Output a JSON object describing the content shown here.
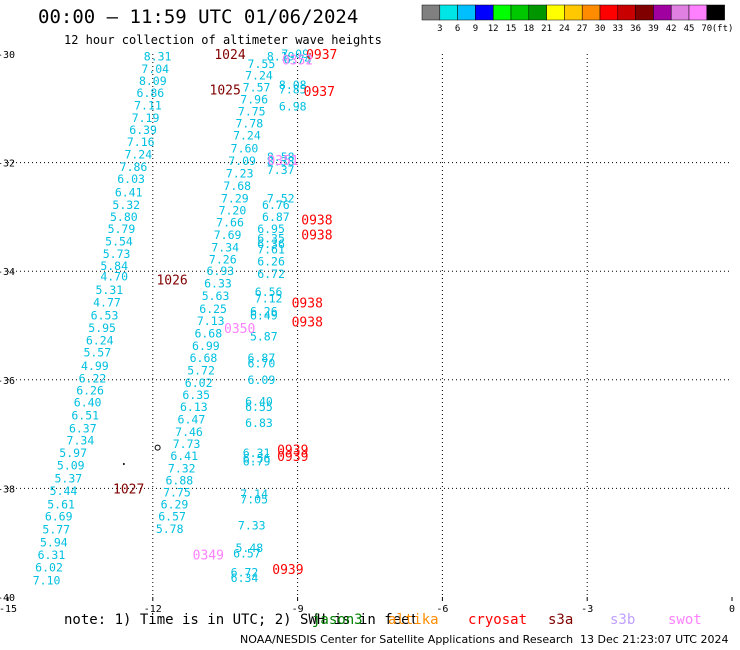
{
  "header": {
    "title": "00:00 — 11:59 UTC 01/06/2024",
    "subtitle": "12 hour collection of altimeter wave heights"
  },
  "colorbar": {
    "unit": "(ft)",
    "bins": [
      {
        "label": "3",
        "color": "#808080"
      },
      {
        "label": "6",
        "color": "#00e5e5"
      },
      {
        "label": "9",
        "color": "#00bfff"
      },
      {
        "label": "12",
        "color": "#0000ff"
      },
      {
        "label": "15",
        "color": "#00ff00"
      },
      {
        "label": "18",
        "color": "#00c800"
      },
      {
        "label": "21",
        "color": "#009600"
      },
      {
        "label": "24",
        "color": "#ffff00"
      },
      {
        "label": "27",
        "color": "#ffc800"
      },
      {
        "label": "30",
        "color": "#ff8c00"
      },
      {
        "label": "33",
        "color": "#ff0000"
      },
      {
        "label": "36",
        "color": "#c80000"
      },
      {
        "label": "39",
        "color": "#800000"
      },
      {
        "label": "42",
        "color": "#a000a0"
      },
      {
        "label": "45",
        "color": "#e080e0"
      },
      {
        "label": "70",
        "color": "#ff80ff"
      },
      {
        "label": "",
        "color": "#000000"
      }
    ]
  },
  "map": {
    "lon_range": [
      -15,
      0
    ],
    "lat_range": [
      -40,
      -30
    ],
    "x_ticks": [
      "-15",
      "-12",
      "-9",
      "-6",
      "-3",
      "0"
    ],
    "y_ticks": [
      "-30",
      "-32",
      "-34",
      "-36",
      "-38",
      "-40"
    ],
    "grid": "dotted",
    "value_color": "#00c0e0",
    "track_points": [
      {
        "lon": -11.9,
        "lat": -30.05,
        "v": "8.31"
      },
      {
        "lon": -11.95,
        "lat": -30.28,
        "v": "7.04"
      },
      {
        "lon": -12.0,
        "lat": -30.5,
        "v": "8.09"
      },
      {
        "lon": -12.05,
        "lat": -30.72,
        "v": "6.86"
      },
      {
        "lon": -12.1,
        "lat": -30.95,
        "v": "7.11"
      },
      {
        "lon": -12.15,
        "lat": -31.18,
        "v": "7.19"
      },
      {
        "lon": -12.2,
        "lat": -31.4,
        "v": "6.39"
      },
      {
        "lon": -12.25,
        "lat": -31.62,
        "v": "7.16"
      },
      {
        "lon": -12.3,
        "lat": -31.85,
        "v": "7.24"
      },
      {
        "lon": -12.4,
        "lat": -32.08,
        "v": "7.86"
      },
      {
        "lon": -12.45,
        "lat": -32.3,
        "v": "6.03"
      },
      {
        "lon": -12.5,
        "lat": -32.55,
        "v": "6.41"
      },
      {
        "lon": -12.55,
        "lat": -32.78,
        "v": "5.32"
      },
      {
        "lon": -12.6,
        "lat": -33.0,
        "v": "5.80"
      },
      {
        "lon": -12.65,
        "lat": -33.22,
        "v": "5.79"
      },
      {
        "lon": -12.7,
        "lat": -33.45,
        "v": "5.54"
      },
      {
        "lon": -12.75,
        "lat": -33.68,
        "v": "5.73"
      },
      {
        "lon": -12.8,
        "lat": -33.9,
        "v": "5.84"
      },
      {
        "lon": -12.8,
        "lat": -34.1,
        "v": "4.70"
      },
      {
        "lon": -12.9,
        "lat": -34.35,
        "v": "5.31"
      },
      {
        "lon": -12.95,
        "lat": -34.58,
        "v": "4.77"
      },
      {
        "lon": -13.0,
        "lat": -34.82,
        "v": "6.53"
      },
      {
        "lon": -13.05,
        "lat": -35.05,
        "v": "5.95"
      },
      {
        "lon": -13.1,
        "lat": -35.28,
        "v": "6.24"
      },
      {
        "lon": -13.15,
        "lat": -35.5,
        "v": "5.57"
      },
      {
        "lon": -13.2,
        "lat": -35.75,
        "v": "4.99"
      },
      {
        "lon": -13.25,
        "lat": -35.98,
        "v": "6.22"
      },
      {
        "lon": -13.3,
        "lat": -36.2,
        "v": "6.26"
      },
      {
        "lon": -13.35,
        "lat": -36.42,
        "v": "6.40"
      },
      {
        "lon": -13.4,
        "lat": -36.66,
        "v": "6.51"
      },
      {
        "lon": -13.45,
        "lat": -36.9,
        "v": "6.37"
      },
      {
        "lon": -13.5,
        "lat": -37.12,
        "v": "7.34"
      },
      {
        "lon": -13.65,
        "lat": -37.35,
        "v": "5.97"
      },
      {
        "lon": -13.7,
        "lat": -37.58,
        "v": "5.09"
      },
      {
        "lon": -13.75,
        "lat": -37.82,
        "v": "5.37"
      },
      {
        "lon": -13.85,
        "lat": -38.05,
        "v": "5.44"
      },
      {
        "lon": -13.9,
        "lat": -38.3,
        "v": "5.61"
      },
      {
        "lon": -13.95,
        "lat": -38.52,
        "v": "6.69"
      },
      {
        "lon": -14.0,
        "lat": -38.76,
        "v": "5.77"
      },
      {
        "lon": -14.05,
        "lat": -39.0,
        "v": "5.94"
      },
      {
        "lon": -14.1,
        "lat": -39.23,
        "v": "6.31"
      },
      {
        "lon": -14.15,
        "lat": -39.46,
        "v": "6.02"
      },
      {
        "lon": -14.2,
        "lat": -39.7,
        "v": "7.10"
      },
      {
        "lon": -9.75,
        "lat": -30.18,
        "v": "7.55"
      },
      {
        "lon": -9.8,
        "lat": -30.4,
        "v": "7.24"
      },
      {
        "lon": -9.85,
        "lat": -30.62,
        "v": "7.57"
      },
      {
        "lon": -9.9,
        "lat": -30.84,
        "v": "7.96"
      },
      {
        "lon": -9.95,
        "lat": -31.06,
        "v": "7.75"
      },
      {
        "lon": -10.0,
        "lat": -31.28,
        "v": "7.78"
      },
      {
        "lon": -10.05,
        "lat": -31.5,
        "v": "7.24"
      },
      {
        "lon": -10.1,
        "lat": -31.74,
        "v": "7.60"
      },
      {
        "lon": -10.15,
        "lat": -31.97,
        "v": "7.09"
      },
      {
        "lon": -10.2,
        "lat": -32.2,
        "v": "7.23"
      },
      {
        "lon": -10.25,
        "lat": -32.43,
        "v": "7.68"
      },
      {
        "lon": -10.3,
        "lat": -32.66,
        "v": "7.29"
      },
      {
        "lon": -10.35,
        "lat": -32.88,
        "v": "7.20"
      },
      {
        "lon": -10.4,
        "lat": -33.1,
        "v": "7.66"
      },
      {
        "lon": -10.45,
        "lat": -33.33,
        "v": "7.69"
      },
      {
        "lon": -10.5,
        "lat": -33.56,
        "v": "7.34"
      },
      {
        "lon": -10.55,
        "lat": -33.78,
        "v": "7.26"
      },
      {
        "lon": -10.6,
        "lat": -34.0,
        "v": "6.93"
      },
      {
        "lon": -10.65,
        "lat": -34.23,
        "v": "6.33"
      },
      {
        "lon": -10.7,
        "lat": -34.46,
        "v": "5.63"
      },
      {
        "lon": -10.75,
        "lat": -34.7,
        "v": "6.25"
      },
      {
        "lon": -10.8,
        "lat": -34.92,
        "v": "7.13"
      },
      {
        "lon": -10.85,
        "lat": -35.15,
        "v": "6.68"
      },
      {
        "lon": -10.9,
        "lat": -35.38,
        "v": "6.99"
      },
      {
        "lon": -10.95,
        "lat": -35.6,
        "v": "6.68"
      },
      {
        "lon": -11.0,
        "lat": -35.83,
        "v": "5.72"
      },
      {
        "lon": -11.05,
        "lat": -36.06,
        "v": "6.02"
      },
      {
        "lon": -11.1,
        "lat": -36.28,
        "v": "6.35"
      },
      {
        "lon": -11.15,
        "lat": -36.5,
        "v": "6.13"
      },
      {
        "lon": -11.2,
        "lat": -36.73,
        "v": "6.47"
      },
      {
        "lon": -11.25,
        "lat": -36.96,
        "v": "7.46"
      },
      {
        "lon": -11.3,
        "lat": -37.18,
        "v": "7.73"
      },
      {
        "lon": -11.35,
        "lat": -37.4,
        "v": "6.41"
      },
      {
        "lon": -11.4,
        "lat": -37.63,
        "v": "7.32"
      },
      {
        "lon": -11.45,
        "lat": -37.85,
        "v": "6.88"
      },
      {
        "lon": -11.5,
        "lat": -38.08,
        "v": "7.75"
      },
      {
        "lon": -11.55,
        "lat": -38.3,
        "v": "6.29"
      },
      {
        "lon": -11.6,
        "lat": -38.52,
        "v": "6.57"
      },
      {
        "lon": -11.65,
        "lat": -38.75,
        "v": "5.78"
      },
      {
        "lon": -9.05,
        "lat": -30.0,
        "v": "7.09"
      },
      {
        "lon": -9.35,
        "lat": -30.05,
        "v": "8.19"
      },
      {
        "lon": -9.0,
        "lat": -30.1,
        "v": "6.74"
      },
      {
        "lon": -9.1,
        "lat": -30.57,
        "v": "8.08"
      },
      {
        "lon": -9.1,
        "lat": -30.65,
        "v": "7.85"
      },
      {
        "lon": -9.1,
        "lat": -30.97,
        "v": "6.98"
      },
      {
        "lon": -9.35,
        "lat": -31.9,
        "v": "8.58"
      },
      {
        "lon": -9.35,
        "lat": -31.98,
        "v": "8.38"
      },
      {
        "lon": -9.35,
        "lat": -32.14,
        "v": "7.37"
      },
      {
        "lon": -9.35,
        "lat": -32.66,
        "v": "7.52"
      },
      {
        "lon": -9.45,
        "lat": -32.78,
        "v": "6.76"
      },
      {
        "lon": -9.45,
        "lat": -33.0,
        "v": "6.87"
      },
      {
        "lon": -9.55,
        "lat": -33.22,
        "v": "6.95"
      },
      {
        "lon": -9.55,
        "lat": -33.4,
        "v": "6.35"
      },
      {
        "lon": -9.55,
        "lat": -33.5,
        "v": "6.36"
      },
      {
        "lon": -9.55,
        "lat": -33.6,
        "v": "7.61"
      },
      {
        "lon": -9.55,
        "lat": -33.82,
        "v": "6.26"
      },
      {
        "lon": -9.55,
        "lat": -34.05,
        "v": "6.72"
      },
      {
        "lon": -9.6,
        "lat": -34.38,
        "v": "6.56"
      },
      {
        "lon": -9.6,
        "lat": -34.5,
        "v": "7.12"
      },
      {
        "lon": -9.7,
        "lat": -34.74,
        "v": "6.26"
      },
      {
        "lon": -9.7,
        "lat": -34.82,
        "v": "6.49"
      },
      {
        "lon": -9.7,
        "lat": -35.2,
        "v": "5.87"
      },
      {
        "lon": -9.75,
        "lat": -35.6,
        "v": "6.87"
      },
      {
        "lon": -9.75,
        "lat": -35.7,
        "v": "6.70"
      },
      {
        "lon": -9.75,
        "lat": -36.0,
        "v": "6.09"
      },
      {
        "lon": -9.8,
        "lat": -36.4,
        "v": "6.40"
      },
      {
        "lon": -9.8,
        "lat": -36.5,
        "v": "6.55"
      },
      {
        "lon": -9.8,
        "lat": -36.8,
        "v": "6.83"
      },
      {
        "lon": -9.85,
        "lat": -37.35,
        "v": "6.31"
      },
      {
        "lon": -9.85,
        "lat": -37.45,
        "v": "6.56"
      },
      {
        "lon": -9.85,
        "lat": -37.5,
        "v": "6.79"
      },
      {
        "lon": -9.9,
        "lat": -38.1,
        "v": "7.14"
      },
      {
        "lon": -9.9,
        "lat": -38.2,
        "v": "7.05"
      },
      {
        "lon": -9.95,
        "lat": -38.68,
        "v": "7.33"
      },
      {
        "lon": -10.0,
        "lat": -39.1,
        "v": "5.48"
      },
      {
        "lon": -10.05,
        "lat": -39.2,
        "v": "6.57"
      },
      {
        "lon": -10.1,
        "lat": -39.55,
        "v": "6.72"
      },
      {
        "lon": -10.1,
        "lat": -39.65,
        "v": "6.34"
      }
    ],
    "pass_labels": [
      {
        "lon": -10.4,
        "lat": -30.0,
        "text": "1024",
        "color": "#800000"
      },
      {
        "lon": -8.5,
        "lat": -30.0,
        "text": "0937",
        "color": "#ff0000"
      },
      {
        "lon": -9.0,
        "lat": -30.1,
        "text": "0352",
        "color": "#ff80ff"
      },
      {
        "lon": -10.5,
        "lat": -30.65,
        "text": "1025",
        "color": "#800000"
      },
      {
        "lon": -8.55,
        "lat": -30.68,
        "text": "0937",
        "color": "#ff0000"
      },
      {
        "lon": -9.3,
        "lat": -31.95,
        "text": "0351",
        "color": "#ff80ff"
      },
      {
        "lon": -8.6,
        "lat": -33.05,
        "text": "0938",
        "color": "#ff0000"
      },
      {
        "lon": -8.6,
        "lat": -33.32,
        "text": "0938",
        "color": "#ff0000"
      },
      {
        "lon": -11.6,
        "lat": -34.15,
        "text": "1026",
        "color": "#800000"
      },
      {
        "lon": -8.8,
        "lat": -34.58,
        "text": "0938",
        "color": "#ff0000"
      },
      {
        "lon": -8.8,
        "lat": -34.93,
        "text": "0938",
        "color": "#ff0000"
      },
      {
        "lon": -10.2,
        "lat": -35.05,
        "text": "0350",
        "color": "#ff80ff"
      },
      {
        "lon": -9.1,
        "lat": -37.28,
        "text": "0939",
        "color": "#ff0000"
      },
      {
        "lon": -9.1,
        "lat": -37.4,
        "text": "0939",
        "color": "#ff0000"
      },
      {
        "lon": -12.5,
        "lat": -38.0,
        "text": "1027",
        "color": "#800000"
      },
      {
        "lon": -10.85,
        "lat": -39.22,
        "text": "0349",
        "color": "#ff80ff"
      },
      {
        "lon": -9.2,
        "lat": -39.48,
        "text": "0939",
        "color": "#ff0000"
      }
    ],
    "markers": [
      {
        "lon": -11.9,
        "lat": -37.25,
        "kind": "circle"
      },
      {
        "lon": -12.6,
        "lat": -37.55,
        "kind": "dot"
      }
    ]
  },
  "footer": {
    "note": "note: 1) Time is in UTC; 2) SWH is in feet",
    "legend": [
      {
        "name": "jason3",
        "color": "#008000"
      },
      {
        "name": "altika",
        "color": "#ff8c00"
      },
      {
        "name": "cryosat",
        "color": "#ff0000"
      },
      {
        "name": "s3a",
        "color": "#800000"
      },
      {
        "name": "s3b",
        "color": "#c0a0ff"
      },
      {
        "name": "swot",
        "color": "#ff80ff"
      }
    ],
    "credit": "NOAA/NESDIS Center for Satellite Applications and Research",
    "created": "13 Dec 21:23:07 UTC 2024"
  }
}
